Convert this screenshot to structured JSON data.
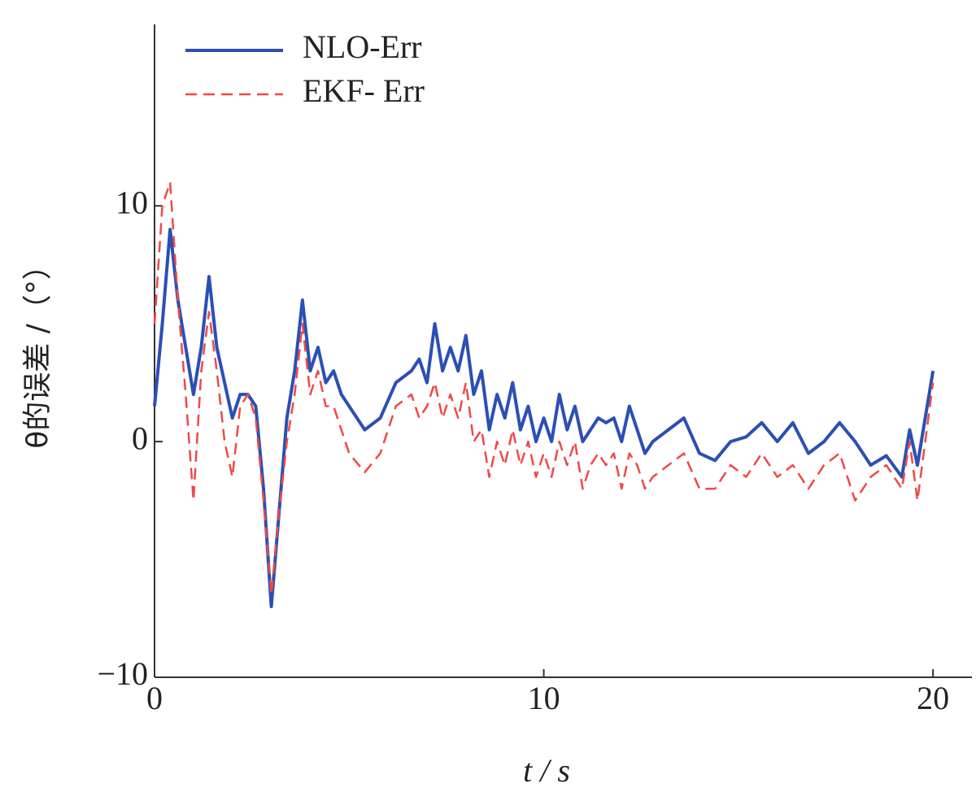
{
  "chart_data": {
    "type": "line",
    "x_label": "t / s",
    "y_label": "θ的误差 /（°）",
    "x": [
      0,
      0.2,
      0.4,
      0.6,
      0.8,
      1,
      1.2,
      1.4,
      1.6,
      1.8,
      2,
      2.2,
      2.4,
      2.6,
      2.8,
      3,
      3.2,
      3.4,
      3.6,
      3.8,
      4,
      4.2,
      4.4,
      4.6,
      4.8,
      5,
      5.4,
      5.8,
      6.2,
      6.6,
      6.8,
      7,
      7.2,
      7.4,
      7.6,
      7.8,
      8,
      8.2,
      8.4,
      8.6,
      8.8,
      9,
      9.2,
      9.4,
      9.6,
      9.8,
      10,
      10.2,
      10.4,
      10.6,
      10.8,
      11,
      11.2,
      11.4,
      11.6,
      11.8,
      12,
      12.2,
      12.4,
      12.6,
      12.8,
      13.2,
      13.6,
      14,
      14.4,
      14.8,
      15.2,
      15.6,
      16,
      16.4,
      16.8,
      17.2,
      17.6,
      18,
      18.4,
      18.8,
      19.2,
      19.4,
      19.6,
      20
    ],
    "series": [
      {
        "name": "NLO-Err",
        "color": "#2b4fb5",
        "dashed": false,
        "values": [
          1.5,
          5,
          9,
          6,
          4,
          2,
          4,
          7,
          4,
          2.5,
          1,
          2,
          2,
          1.5,
          -2,
          -7,
          -3,
          1,
          3,
          6,
          3,
          4,
          2.5,
          3,
          2,
          1.5,
          0.5,
          1,
          2.5,
          3,
          3.5,
          2.5,
          5,
          3,
          4,
          3,
          4.5,
          2,
          3,
          0.5,
          2,
          1,
          2.5,
          0.5,
          1.5,
          0,
          1,
          0,
          2,
          0.5,
          1.5,
          0,
          0.5,
          1,
          0.8,
          1,
          0,
          1.5,
          0.5,
          -0.5,
          0,
          0.5,
          1,
          -0.5,
          -0.8,
          0,
          0.2,
          0.8,
          0,
          0.8,
          -0.5,
          0,
          0.8,
          0,
          -1,
          -0.6,
          -1.5,
          0.5,
          -1,
          3
        ]
      },
      {
        "name": "EKF- Err",
        "color": "#f04848",
        "dashed": true,
        "values": [
          5,
          10,
          11,
          6,
          2,
          -2.5,
          3,
          5.5,
          3,
          0,
          -1.5,
          1.5,
          2,
          1,
          -2.5,
          -6.5,
          -3,
          0,
          2,
          5,
          2,
          3,
          1.5,
          1.5,
          0.5,
          -0.5,
          -1.3,
          -0.5,
          1.5,
          2,
          1,
          1.5,
          2.5,
          1,
          2,
          1,
          2.5,
          0,
          0.5,
          -1.5,
          0,
          -1,
          0.5,
          -1,
          0,
          -1.5,
          -0.5,
          -1.5,
          0,
          -1,
          0,
          -2,
          -1,
          -0.5,
          -1,
          -0.5,
          -2,
          -0.5,
          -1,
          -2,
          -1.5,
          -1,
          -0.5,
          -2,
          -2,
          -1,
          -1.5,
          -0.5,
          -1.5,
          -1,
          -2,
          -1,
          -0.5,
          -2.5,
          -1.5,
          -1,
          -2,
          0,
          -2.5,
          2.5
        ]
      }
    ],
    "xlim": [
      0,
      21
    ],
    "xticks": [
      0,
      10,
      20
    ],
    "ylim": [
      -10,
      17.7
    ],
    "yticks": [
      {
        "value": -10,
        "label": "−10"
      },
      0,
      10
    ],
    "legend": "upper left",
    "grid": false
  }
}
